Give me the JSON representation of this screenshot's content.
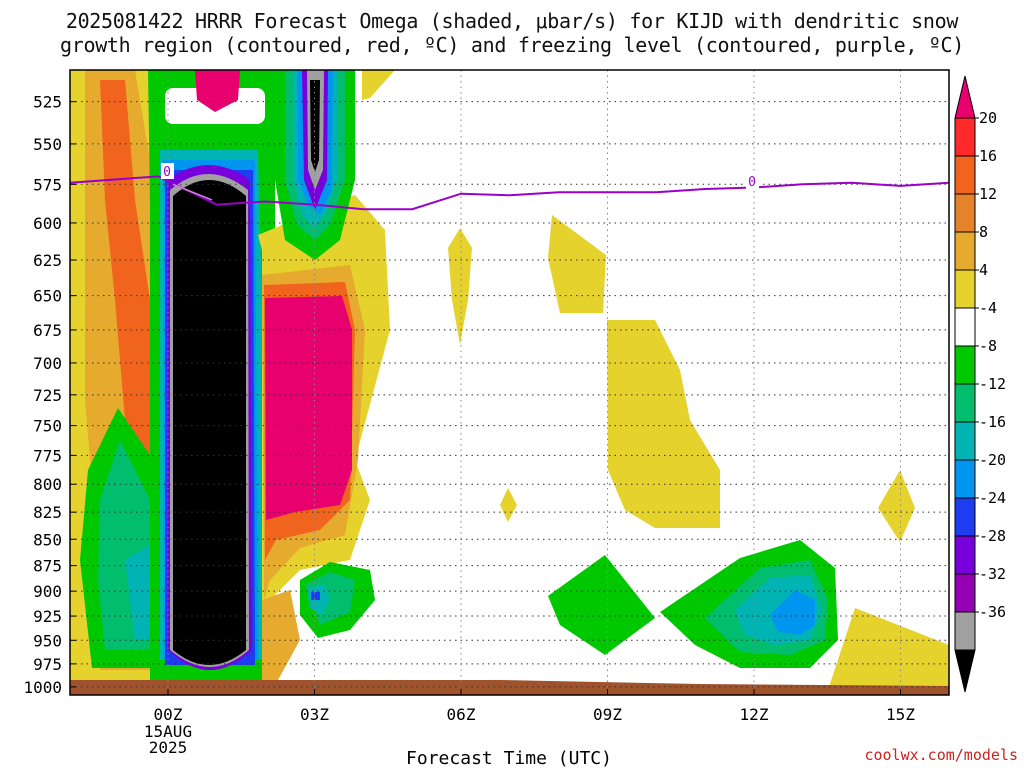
{
  "title": {
    "line1": "2025081422 HRRR Forecast Omega (shaded, μbar/s) for KIJD with dendritic snow",
    "line2": "growth region (contoured, red, ºC) and freezing level (contoured, purple, ºC)"
  },
  "credit": "coolwx.com/models",
  "chart_data": {
    "type": "heatmap",
    "title": "2025081422 HRRR Forecast Omega (shaded, μbar/s) for KIJD with dendritic snow growth region (contoured, red, ºC) and freezing level (contoured, purple, ºC)",
    "xlabel": "Forecast Time (UTC)",
    "ylabel": "",
    "x_ticks": [
      "00Z",
      "03Z",
      "06Z",
      "09Z",
      "12Z",
      "15Z"
    ],
    "x_tick_extra": [
      "15AUG",
      "2025"
    ],
    "y_ticks": [
      525,
      550,
      575,
      600,
      625,
      650,
      675,
      700,
      725,
      750,
      775,
      800,
      825,
      850,
      875,
      900,
      925,
      950,
      975,
      1000
    ],
    "y_scale": "log-pressure",
    "xlim": [
      "2025-08-14T22Z",
      "2025-08-15T16Z"
    ],
    "grid": true,
    "colorbar": {
      "labels": [
        "20",
        "16",
        "12",
        "8",
        "4",
        "-4",
        "-8",
        "-12",
        "-16",
        "-20",
        "-24",
        "-28",
        "-32",
        "-36"
      ],
      "colors": [
        "#e8006f",
        "#ff2a2a",
        "#f0641e",
        "#e6822a",
        "#e6aa2e",
        "#e6d22d",
        "#ffffff",
        "#00c800",
        "#00be6e",
        "#00b4b4",
        "#0096f0",
        "#1e3cf0",
        "#7800dc",
        "#9600b4",
        "#a0a0a0",
        "#000000"
      ]
    },
    "freezing_level": {
      "label": "0",
      "color": "#9900cc",
      "hours": [
        -2,
        -0.2,
        1,
        2,
        3,
        4,
        5,
        6,
        7,
        8,
        9,
        10,
        11,
        12,
        13,
        14,
        15,
        16
      ],
      "pressure": [
        574,
        570,
        588,
        586,
        588,
        591,
        591,
        581,
        582,
        580,
        580,
        580,
        578,
        577,
        575,
        574,
        576,
        574
      ]
    },
    "omega_regions": [
      {
        "name": "strong ascent core",
        "hours": [
          0.0,
          1.8
        ],
        "pressure": [
          570,
          985
        ],
        "min_value": -36
      },
      {
        "name": "upper ascent core",
        "hours": [
          2.5,
          3.6
        ],
        "pressure": [
          505,
          630
        ],
        "min_value": -36
      },
      {
        "name": "descent max",
        "hours": [
          1.9,
          3.8
        ],
        "pressure": [
          650,
          850
        ],
        "max_value": 20
      },
      {
        "name": "low-level ascent",
        "hours": [
          12.0,
          14.0
        ],
        "pressure": [
          855,
          970
        ],
        "min_value": -16
      },
      {
        "name": "low-level ascent",
        "hours": [
          8.0,
          9.8
        ],
        "pressure": [
          875,
          975
        ],
        "min_value": -8
      }
    ],
    "surface": {
      "color": "#a0522d",
      "pressure": 1000
    }
  }
}
